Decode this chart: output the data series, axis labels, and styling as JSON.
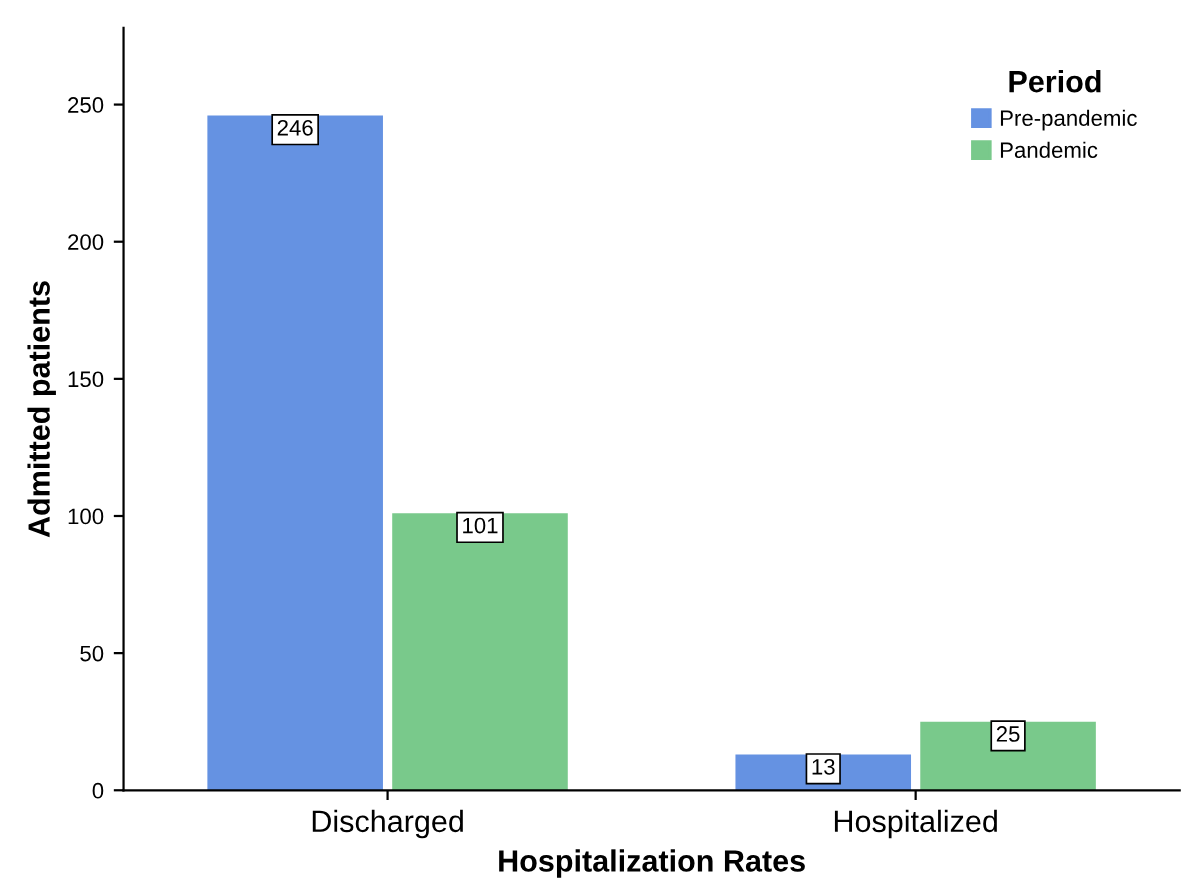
{
  "chart_data": {
    "type": "bar",
    "xlabel": "Hospitalization Rates",
    "ylabel": "Admitted patients",
    "legend_title": "Period",
    "categories": [
      "Discharged",
      "Hospitalized"
    ],
    "series": [
      {
        "name": "Pre-pandemic",
        "color": "#6592e2",
        "values": [
          246,
          13
        ]
      },
      {
        "name": "Pandemic",
        "color": "#79c98b",
        "values": [
          101,
          25
        ]
      }
    ],
    "ylim": [
      0,
      278
    ],
    "yticks": [
      0,
      50,
      100,
      150,
      200,
      250
    ],
    "data_labels": true,
    "legend": "top right",
    "grid": false
  }
}
